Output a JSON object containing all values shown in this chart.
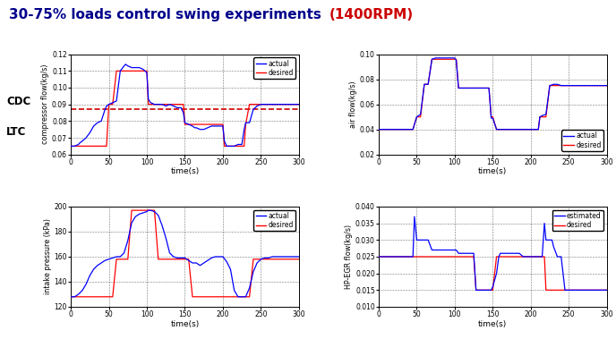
{
  "title_main": "30-75% loads control swing experiments ",
  "title_rpm": "(1400RPM)",
  "title_color_main": "#00008B",
  "title_color_rpm": "#CC0000",
  "title_fontsize": 11,
  "plot1": {
    "ylabel": "compressor flow(kg/s)",
    "xlabel": "time(s)",
    "xlim": [
      0,
      300
    ],
    "ylim": [
      0.06,
      0.12
    ],
    "yticks": [
      0.06,
      0.07,
      0.08,
      0.09,
      0.1,
      0.11,
      0.12
    ],
    "xticks": [
      0,
      50,
      100,
      150,
      200,
      250,
      300
    ],
    "legend": [
      "actual",
      "desired"
    ],
    "legend_colors": [
      "blue",
      "red"
    ],
    "dashed_line_y": 0.087,
    "dashed_line_color": "#CC0000",
    "time": [
      0,
      5,
      10,
      12,
      15,
      20,
      25,
      30,
      35,
      40,
      45,
      47,
      50,
      55,
      60,
      65,
      70,
      72,
      75,
      80,
      85,
      90,
      95,
      100,
      102,
      105,
      110,
      115,
      120,
      125,
      130,
      135,
      140,
      145,
      148,
      150,
      155,
      160,
      163,
      165,
      170,
      175,
      180,
      185,
      190,
      195,
      200,
      202,
      205,
      210,
      215,
      220,
      225,
      228,
      230,
      235,
      240,
      245,
      250,
      255,
      260,
      265,
      270,
      275,
      280,
      285,
      290,
      295,
      300
    ],
    "actual": [
      0.065,
      0.065,
      0.066,
      0.067,
      0.068,
      0.07,
      0.073,
      0.077,
      0.079,
      0.08,
      0.087,
      0.089,
      0.09,
      0.091,
      0.092,
      0.11,
      0.113,
      0.114,
      0.113,
      0.112,
      0.112,
      0.112,
      0.111,
      0.109,
      0.093,
      0.091,
      0.09,
      0.09,
      0.09,
      0.089,
      0.09,
      0.089,
      0.088,
      0.088,
      0.085,
      0.079,
      0.078,
      0.077,
      0.076,
      0.076,
      0.075,
      0.075,
      0.076,
      0.077,
      0.077,
      0.077,
      0.077,
      0.068,
      0.065,
      0.065,
      0.065,
      0.066,
      0.066,
      0.075,
      0.079,
      0.079,
      0.087,
      0.089,
      0.09,
      0.09,
      0.09,
      0.09,
      0.09,
      0.09,
      0.09,
      0.09,
      0.09,
      0.09,
      0.09
    ],
    "desired": [
      0.065,
      0.065,
      0.065,
      0.065,
      0.065,
      0.065,
      0.065,
      0.065,
      0.065,
      0.065,
      0.065,
      0.065,
      0.09,
      0.09,
      0.11,
      0.11,
      0.11,
      0.11,
      0.11,
      0.11,
      0.11,
      0.11,
      0.11,
      0.11,
      0.09,
      0.09,
      0.09,
      0.09,
      0.09,
      0.09,
      0.09,
      0.09,
      0.09,
      0.09,
      0.09,
      0.078,
      0.078,
      0.078,
      0.078,
      0.078,
      0.078,
      0.078,
      0.078,
      0.078,
      0.078,
      0.078,
      0.078,
      0.065,
      0.065,
      0.065,
      0.065,
      0.065,
      0.065,
      0.065,
      0.078,
      0.09,
      0.09,
      0.09,
      0.09,
      0.09,
      0.09,
      0.09,
      0.09,
      0.09,
      0.09,
      0.09,
      0.09,
      0.09,
      0.09
    ]
  },
  "plot2": {
    "ylabel": "air flow(kg/s)",
    "xlabel": "time(s)",
    "xlim": [
      0,
      300
    ],
    "ylim": [
      0.02,
      0.1
    ],
    "yticks": [
      0.02,
      0.04,
      0.06,
      0.08,
      0.1
    ],
    "xticks": [
      0,
      50,
      100,
      150,
      200,
      250,
      300
    ],
    "legend": [
      "actual",
      "desired"
    ],
    "legend_colors": [
      "blue",
      "red"
    ],
    "time": [
      0,
      5,
      10,
      15,
      20,
      25,
      30,
      35,
      40,
      45,
      50,
      55,
      60,
      62,
      65,
      70,
      75,
      80,
      85,
      90,
      95,
      100,
      102,
      105,
      110,
      115,
      120,
      125,
      130,
      135,
      140,
      145,
      148,
      150,
      155,
      160,
      165,
      170,
      175,
      180,
      185,
      190,
      195,
      200,
      205,
      210,
      212,
      215,
      220,
      225,
      230,
      235,
      240,
      242,
      245,
      250,
      255,
      260,
      265,
      270,
      275,
      280,
      285,
      290,
      295,
      300
    ],
    "actual": [
      0.04,
      0.04,
      0.04,
      0.04,
      0.04,
      0.04,
      0.04,
      0.04,
      0.04,
      0.04,
      0.05,
      0.052,
      0.076,
      0.076,
      0.076,
      0.096,
      0.097,
      0.097,
      0.097,
      0.097,
      0.097,
      0.097,
      0.095,
      0.073,
      0.073,
      0.073,
      0.073,
      0.073,
      0.073,
      0.073,
      0.073,
      0.073,
      0.049,
      0.049,
      0.04,
      0.04,
      0.04,
      0.04,
      0.04,
      0.04,
      0.04,
      0.04,
      0.04,
      0.04,
      0.04,
      0.04,
      0.05,
      0.051,
      0.052,
      0.075,
      0.076,
      0.076,
      0.075,
      0.075,
      0.075,
      0.075,
      0.075,
      0.075,
      0.075,
      0.075,
      0.075,
      0.075,
      0.075,
      0.075,
      0.075,
      0.075
    ],
    "desired": [
      0.04,
      0.04,
      0.04,
      0.04,
      0.04,
      0.04,
      0.04,
      0.04,
      0.04,
      0.04,
      0.05,
      0.05,
      0.076,
      0.076,
      0.076,
      0.096,
      0.096,
      0.096,
      0.096,
      0.096,
      0.096,
      0.096,
      0.096,
      0.073,
      0.073,
      0.073,
      0.073,
      0.073,
      0.073,
      0.073,
      0.073,
      0.073,
      0.05,
      0.05,
      0.04,
      0.04,
      0.04,
      0.04,
      0.04,
      0.04,
      0.04,
      0.04,
      0.04,
      0.04,
      0.04,
      0.04,
      0.05,
      0.05,
      0.05,
      0.075,
      0.075,
      0.075,
      0.075,
      0.075,
      0.075,
      0.075,
      0.075,
      0.075,
      0.075,
      0.075,
      0.075,
      0.075,
      0.075,
      0.075,
      0.075,
      0.075
    ]
  },
  "plot3": {
    "ylabel": "intake pressure (kPa)",
    "xlabel": "time(s)",
    "xlim": [
      0,
      300
    ],
    "ylim": [
      120,
      200
    ],
    "yticks": [
      120,
      140,
      160,
      180,
      200
    ],
    "xticks": [
      0,
      50,
      100,
      150,
      200,
      250,
      300
    ],
    "legend": [
      "actual",
      "desired"
    ],
    "legend_colors": [
      "blue",
      "red"
    ],
    "time": [
      0,
      5,
      10,
      15,
      20,
      25,
      30,
      35,
      40,
      45,
      50,
      55,
      60,
      65,
      70,
      75,
      80,
      85,
      90,
      95,
      100,
      102,
      105,
      110,
      115,
      120,
      125,
      130,
      135,
      140,
      145,
      148,
      150,
      155,
      160,
      165,
      170,
      175,
      180,
      185,
      190,
      195,
      200,
      205,
      210,
      215,
      220,
      225,
      228,
      230,
      235,
      240,
      245,
      250,
      255,
      260,
      265,
      270,
      275,
      280,
      285,
      290,
      295,
      300
    ],
    "actual": [
      128,
      128,
      130,
      133,
      138,
      145,
      150,
      153,
      155,
      157,
      158,
      159,
      160,
      160,
      163,
      173,
      187,
      192,
      194,
      195,
      196,
      197,
      197,
      196,
      193,
      185,
      175,
      163,
      160,
      159,
      159,
      159,
      159,
      157,
      155,
      155,
      153,
      155,
      157,
      159,
      160,
      160,
      160,
      156,
      150,
      133,
      128,
      128,
      128,
      128,
      135,
      148,
      155,
      158,
      159,
      159,
      160,
      160,
      160,
      160,
      160,
      160,
      160,
      160
    ],
    "desired": [
      128,
      128,
      128,
      128,
      128,
      128,
      128,
      128,
      128,
      128,
      128,
      128,
      158,
      158,
      158,
      158,
      197,
      197,
      197,
      197,
      197,
      197,
      197,
      197,
      158,
      158,
      158,
      158,
      158,
      158,
      158,
      158,
      158,
      158,
      128,
      128,
      128,
      128,
      128,
      128,
      128,
      128,
      128,
      128,
      128,
      128,
      128,
      128,
      128,
      128,
      128,
      158,
      158,
      158,
      158,
      158,
      158,
      158,
      158,
      158,
      158,
      158,
      158,
      158
    ]
  },
  "plot4": {
    "ylabel": "HP-EGR flow(kg/s)",
    "xlabel": "time(s)",
    "xlim": [
      0,
      300
    ],
    "ylim": [
      0.01,
      0.04
    ],
    "yticks": [
      0.01,
      0.015,
      0.02,
      0.025,
      0.03,
      0.035,
      0.04
    ],
    "xticks": [
      0,
      50,
      100,
      150,
      200,
      250,
      300
    ],
    "legend": [
      "estimated",
      "desired"
    ],
    "legend_colors": [
      "blue",
      "red"
    ],
    "time": [
      0,
      5,
      10,
      15,
      20,
      25,
      30,
      35,
      40,
      45,
      47,
      50,
      55,
      57,
      60,
      65,
      70,
      75,
      80,
      85,
      90,
      95,
      100,
      102,
      105,
      110,
      115,
      120,
      125,
      128,
      130,
      135,
      140,
      143,
      145,
      148,
      150,
      155,
      158,
      160,
      165,
      170,
      175,
      180,
      185,
      190,
      195,
      200,
      205,
      210,
      215,
      218,
      220,
      225,
      228,
      230,
      235,
      240,
      245,
      248,
      250,
      255,
      260,
      265,
      270,
      275,
      280,
      285,
      290,
      295,
      300
    ],
    "actual": [
      0.025,
      0.025,
      0.025,
      0.025,
      0.025,
      0.025,
      0.025,
      0.025,
      0.025,
      0.025,
      0.037,
      0.03,
      0.03,
      0.03,
      0.03,
      0.03,
      0.027,
      0.027,
      0.027,
      0.027,
      0.027,
      0.027,
      0.027,
      0.027,
      0.026,
      0.026,
      0.026,
      0.026,
      0.026,
      0.015,
      0.015,
      0.015,
      0.015,
      0.015,
      0.015,
      0.015,
      0.016,
      0.02,
      0.025,
      0.026,
      0.026,
      0.026,
      0.026,
      0.026,
      0.026,
      0.025,
      0.025,
      0.025,
      0.025,
      0.025,
      0.025,
      0.035,
      0.03,
      0.03,
      0.03,
      0.028,
      0.025,
      0.025,
      0.015,
      0.015,
      0.015,
      0.015,
      0.015,
      0.015,
      0.015,
      0.015,
      0.015,
      0.015,
      0.015,
      0.015,
      0.015
    ],
    "desired": [
      0.025,
      0.025,
      0.025,
      0.025,
      0.025,
      0.025,
      0.025,
      0.025,
      0.025,
      0.025,
      0.025,
      0.025,
      0.025,
      0.025,
      0.025,
      0.025,
      0.025,
      0.025,
      0.025,
      0.025,
      0.025,
      0.025,
      0.025,
      0.025,
      0.025,
      0.025,
      0.025,
      0.025,
      0.025,
      0.015,
      0.015,
      0.015,
      0.015,
      0.015,
      0.015,
      0.015,
      0.015,
      0.025,
      0.025,
      0.025,
      0.025,
      0.025,
      0.025,
      0.025,
      0.025,
      0.025,
      0.025,
      0.025,
      0.025,
      0.025,
      0.025,
      0.025,
      0.015,
      0.015,
      0.015,
      0.015,
      0.015,
      0.015,
      0.015,
      0.015,
      0.015,
      0.015,
      0.015,
      0.015,
      0.015,
      0.015,
      0.015,
      0.015,
      0.015,
      0.015,
      0.015
    ]
  }
}
